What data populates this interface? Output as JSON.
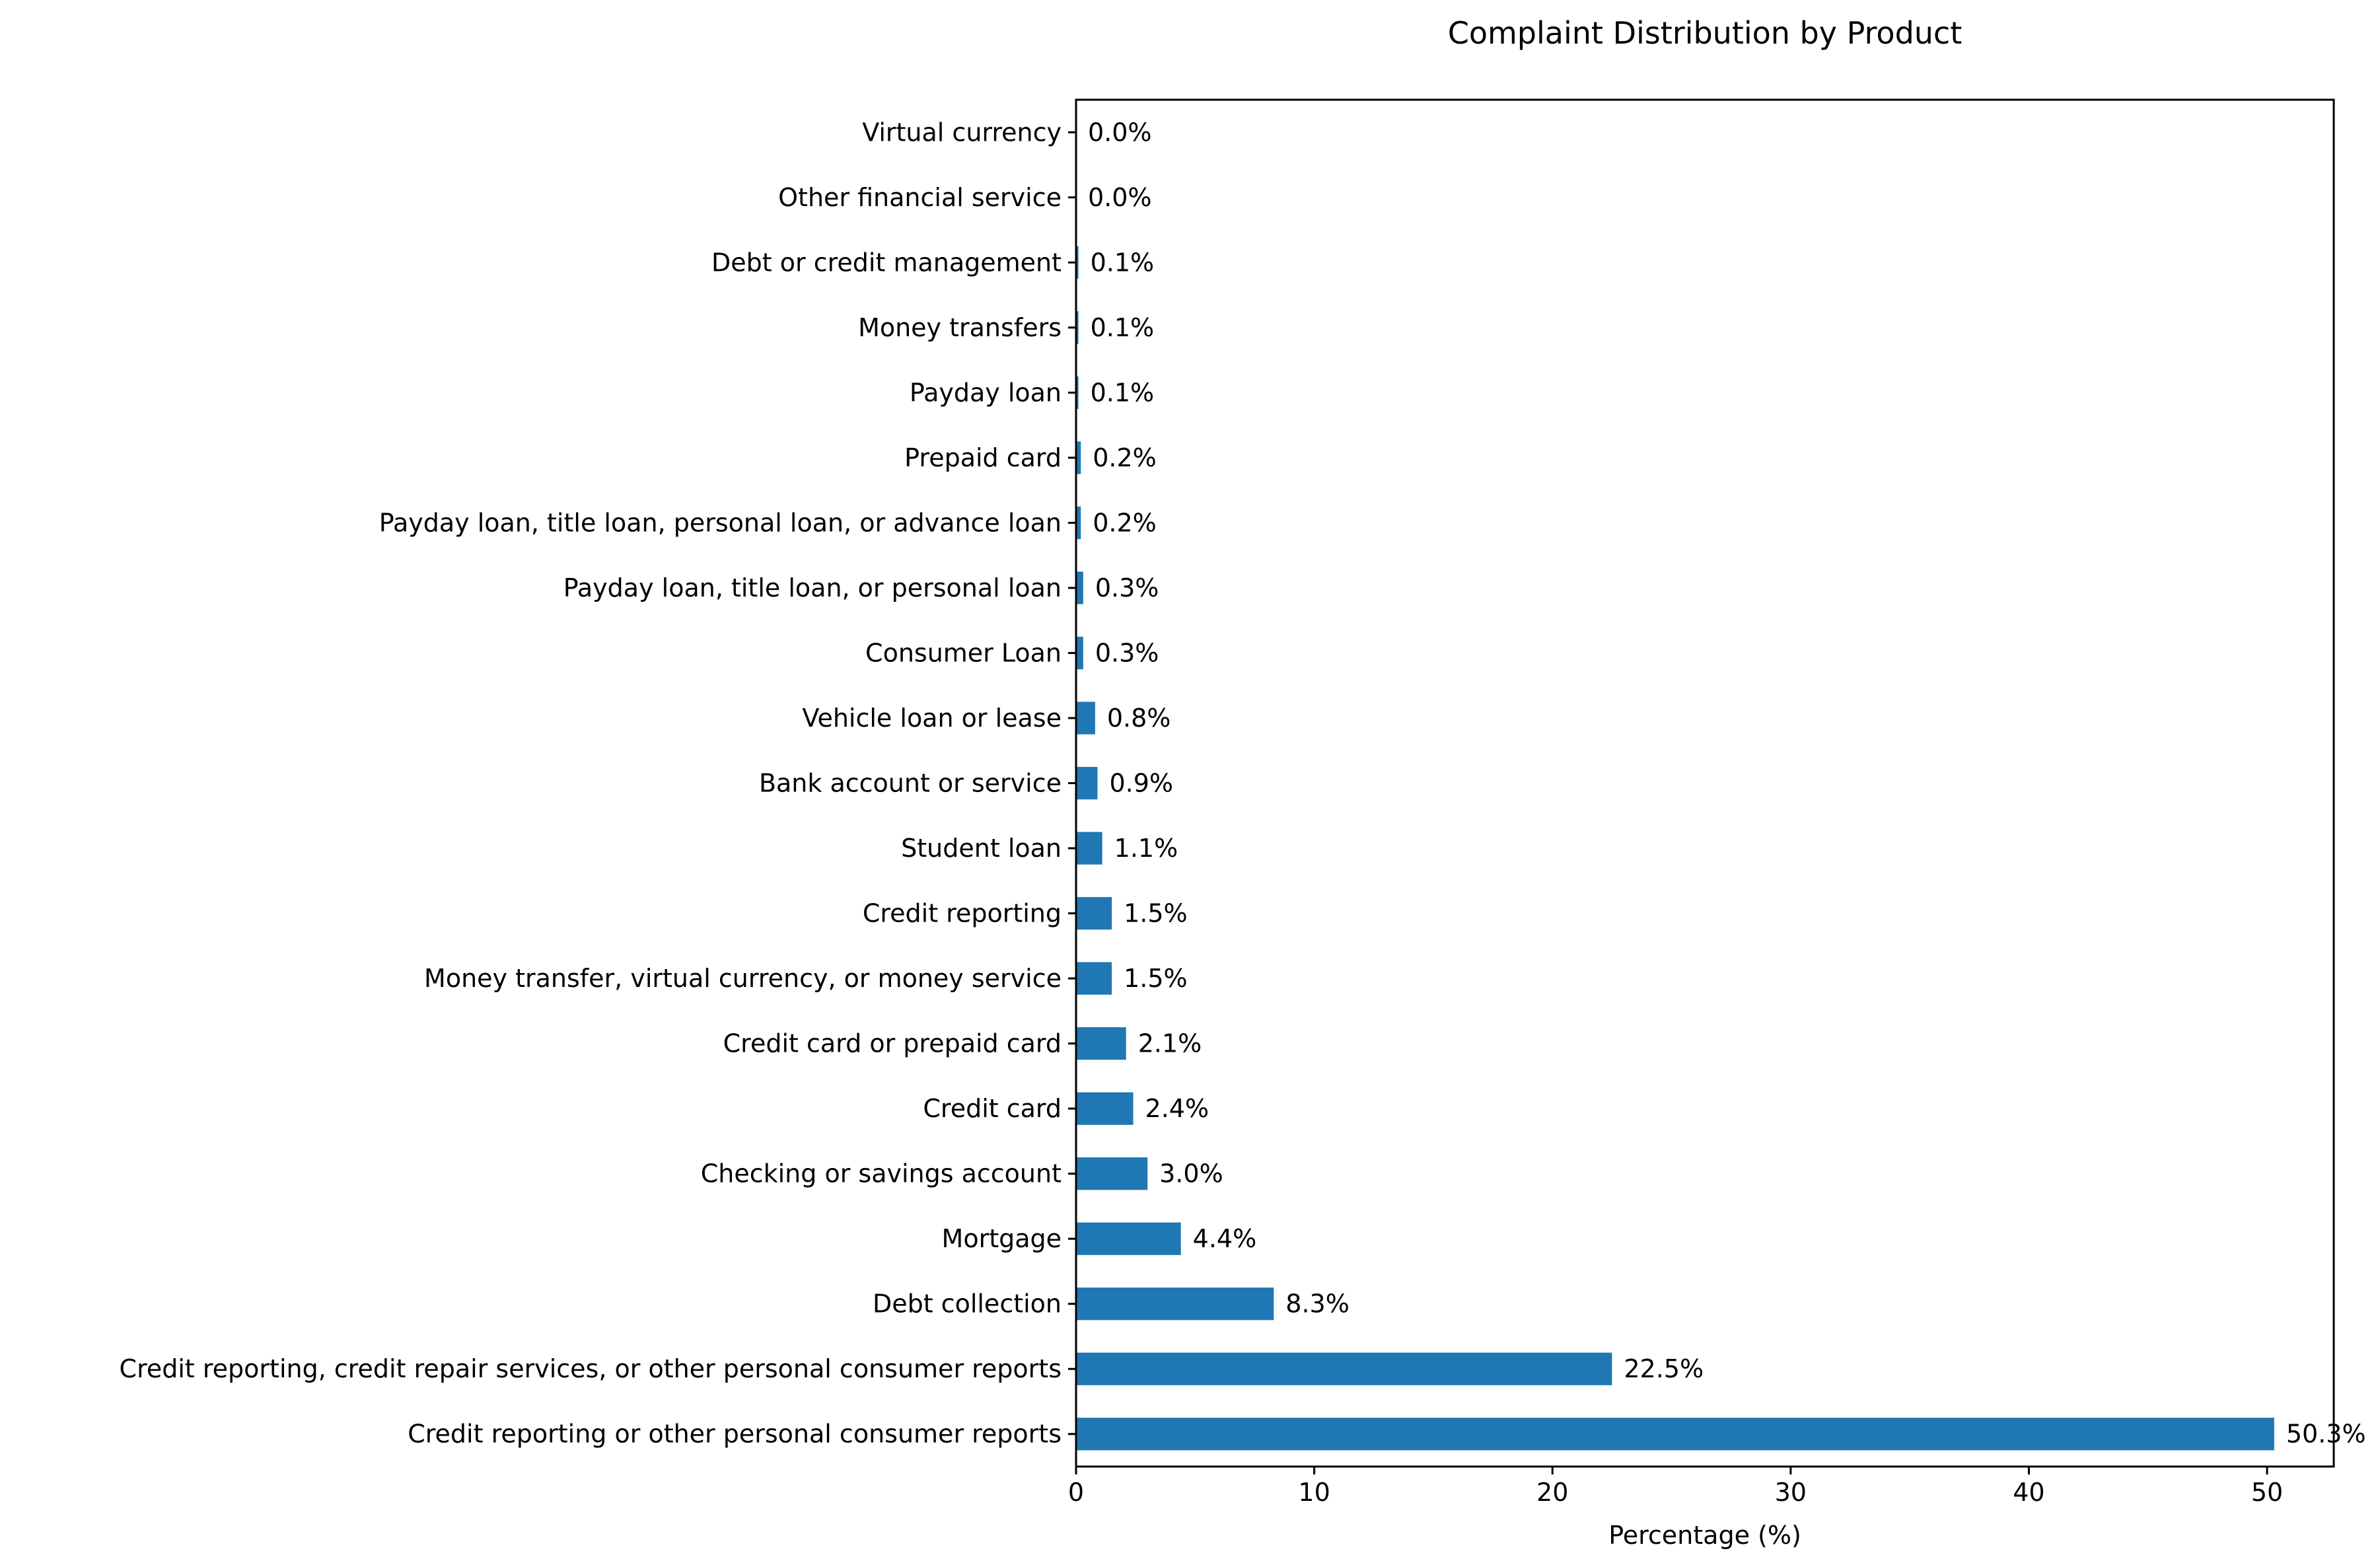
{
  "chart_data": {
    "type": "bar",
    "orientation": "horizontal",
    "title": "Complaint Distribution by Product",
    "xlabel": "Percentage (%)",
    "ylabel": "",
    "xlim": [
      0,
      52.8
    ],
    "xticks": [
      0,
      10,
      20,
      30,
      40,
      50
    ],
    "grid": false,
    "bar_color": "#1f77b4",
    "categories": [
      "Credit reporting or other personal consumer reports",
      "Credit reporting, credit repair services, or other personal consumer reports",
      "Debt collection",
      "Mortgage",
      "Checking or savings account",
      "Credit card",
      "Credit card or prepaid card",
      "Money transfer, virtual currency, or money service",
      "Credit reporting",
      "Student loan",
      "Bank account or service",
      "Vehicle loan or lease",
      "Consumer Loan",
      "Payday loan, title loan, or personal loan",
      "Payday loan, title loan, personal loan, or advance loan",
      "Prepaid card",
      "Payday loan",
      "Money transfers",
      "Debt or credit management",
      "Other financial service",
      "Virtual currency"
    ],
    "values": [
      50.3,
      22.5,
      8.3,
      4.4,
      3.0,
      2.4,
      2.1,
      1.5,
      1.5,
      1.1,
      0.9,
      0.8,
      0.3,
      0.3,
      0.2,
      0.2,
      0.1,
      0.1,
      0.1,
      0.0,
      0.0
    ],
    "data_labels": [
      "50.3%",
      "22.5%",
      "8.3%",
      "4.4%",
      "3.0%",
      "2.4%",
      "2.1%",
      "1.5%",
      "1.5%",
      "1.1%",
      "0.9%",
      "0.8%",
      "0.3%",
      "0.3%",
      "0.2%",
      "0.2%",
      "0.1%",
      "0.1%",
      "0.1%",
      "0.0%",
      "0.0%"
    ]
  }
}
